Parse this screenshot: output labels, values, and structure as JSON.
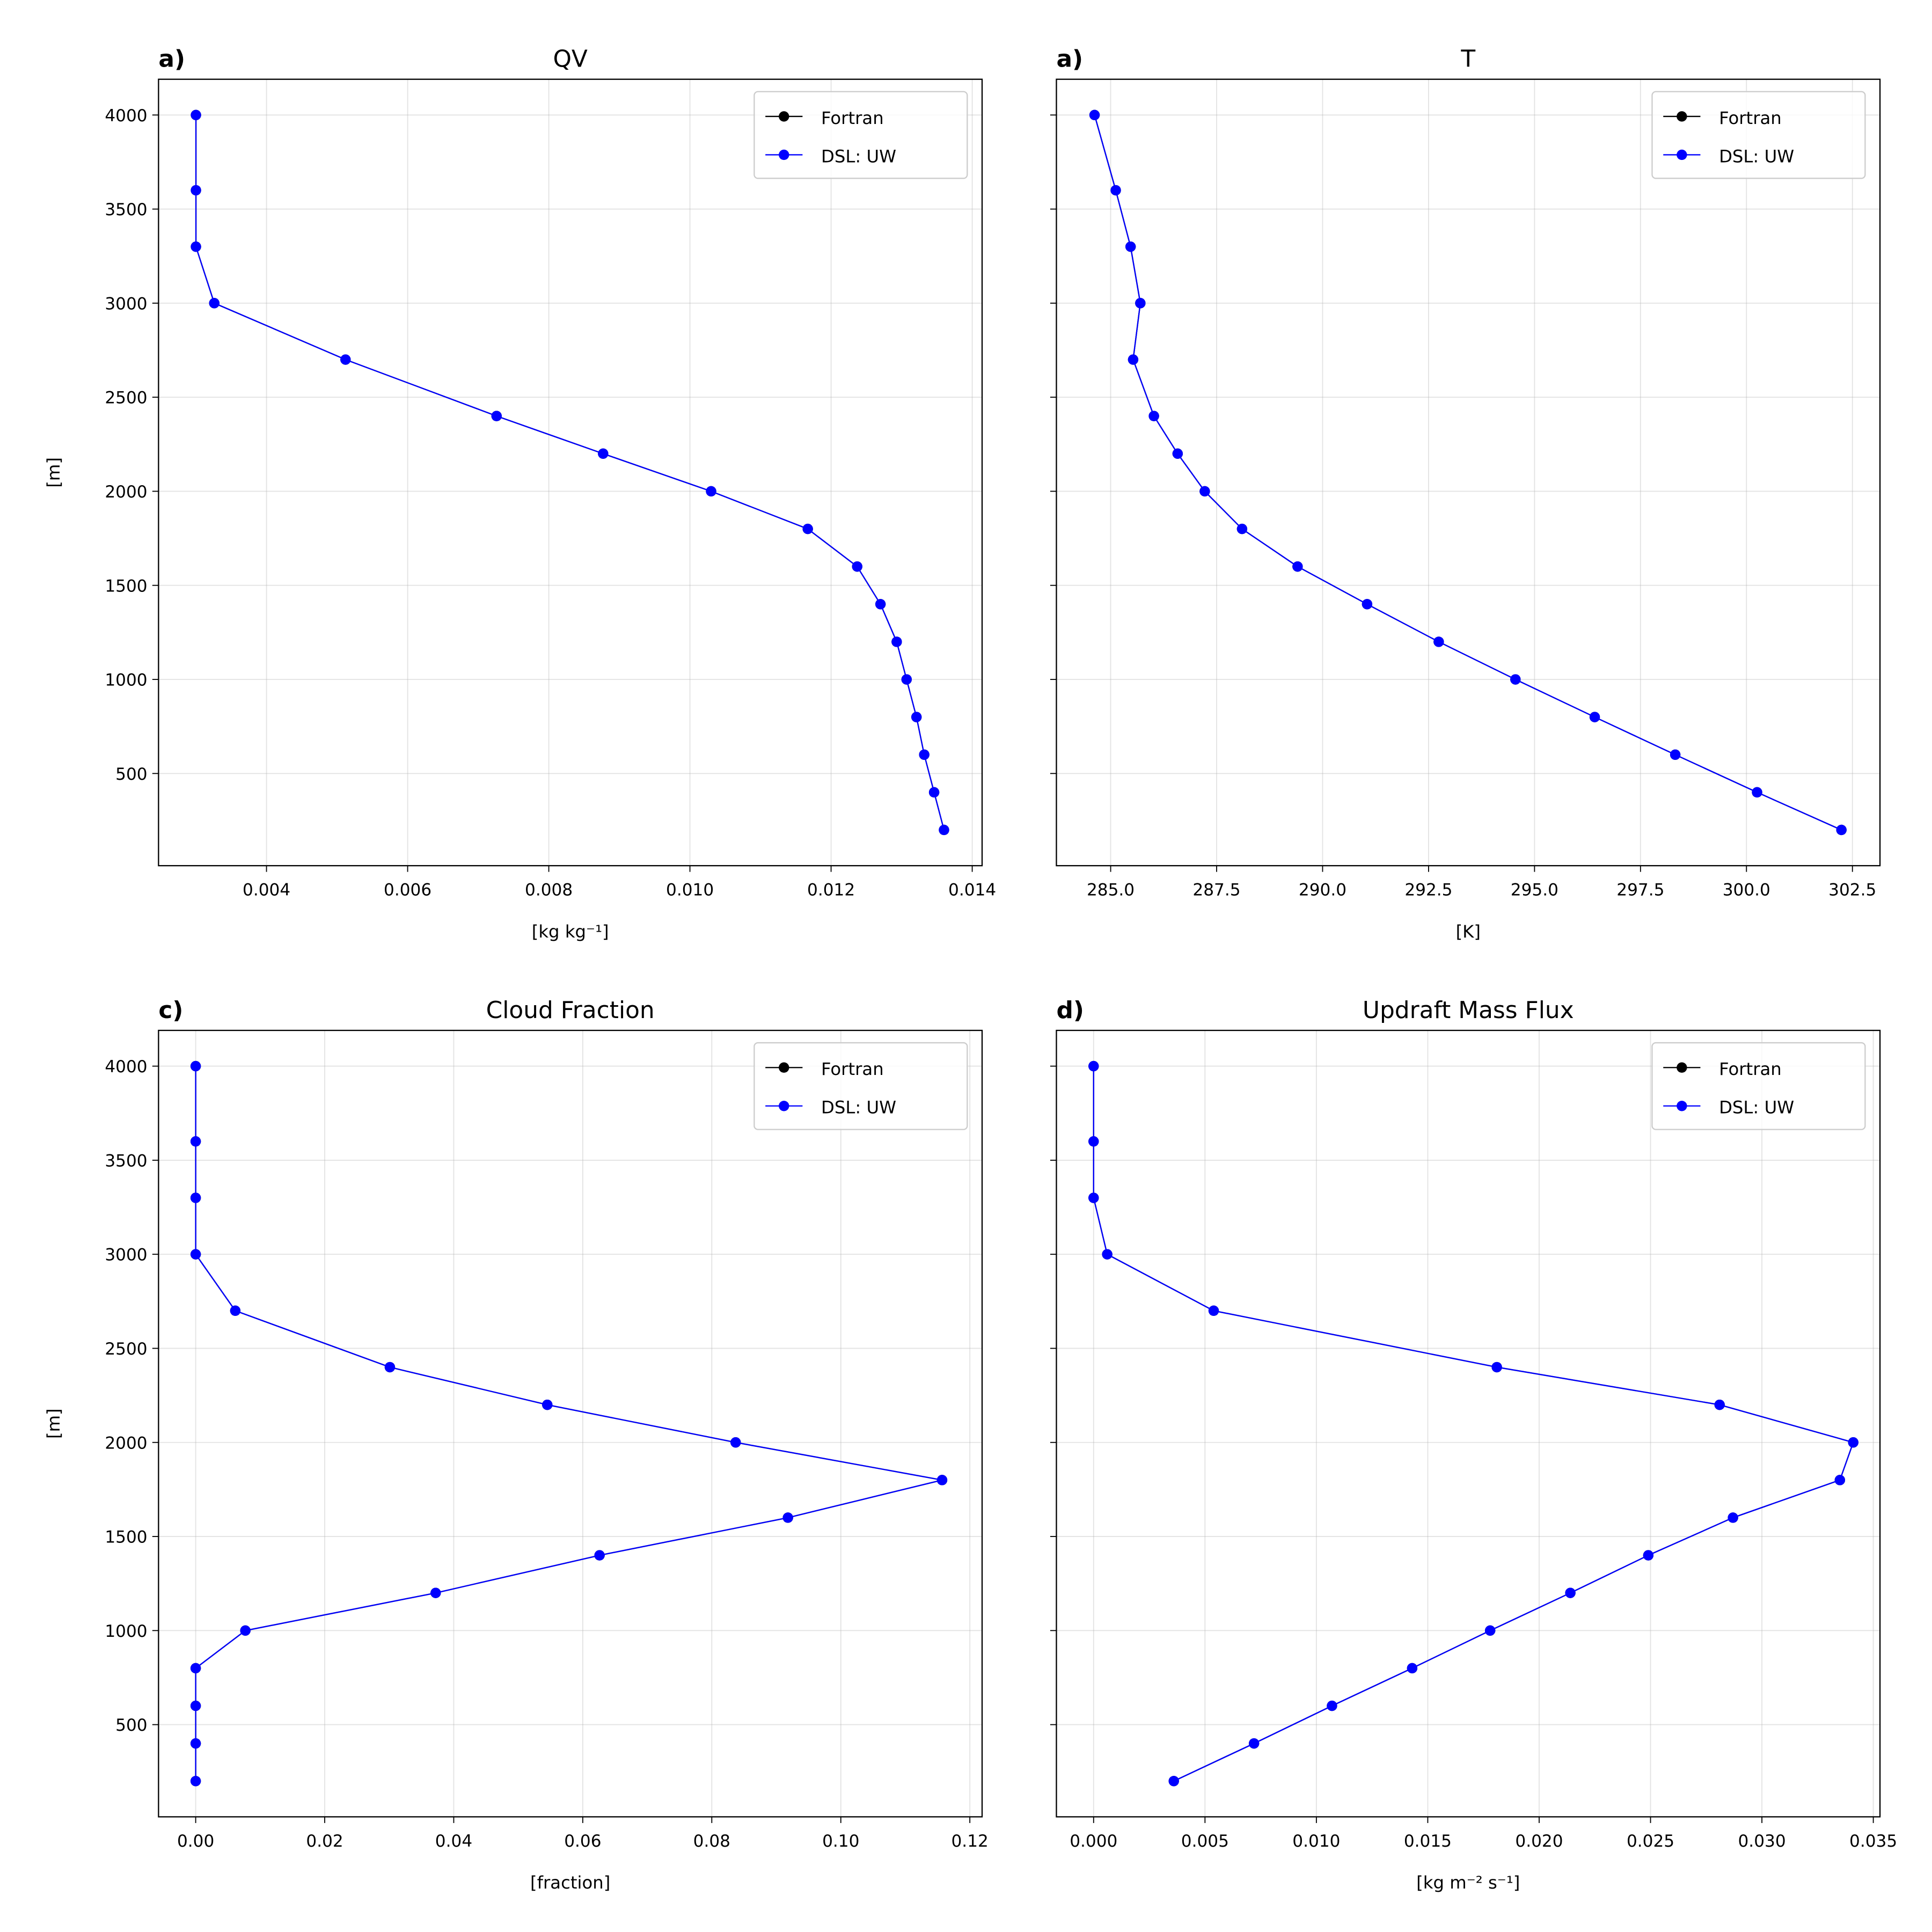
{
  "chart_data": [
    {
      "type": "line",
      "label": "a)",
      "title": "QV",
      "xlabel": "[kg kg⁻¹]",
      "ylabel": "[m]",
      "xlim": [
        0.00247,
        0.01414
      ],
      "ylim": [
        10,
        4190
      ],
      "xticks": [
        0.004,
        0.006,
        0.008,
        0.01,
        0.012,
        0.014
      ],
      "xtick_labels": [
        "0.004",
        "0.006",
        "0.008",
        "0.010",
        "0.012",
        "0.014"
      ],
      "yticks": [
        500,
        1000,
        1500,
        2000,
        2500,
        3000,
        3500,
        4000
      ],
      "ytick_labels": [
        "500",
        "1000",
        "1500",
        "2000",
        "2500",
        "3000",
        "3500",
        "4000"
      ],
      "show_ytick_labels": true,
      "grid": true,
      "legend": "top-right",
      "y": [
        4000,
        3600,
        3300,
        3000,
        2700,
        2400,
        2200,
        2000,
        1800,
        1600,
        1400,
        1200,
        1000,
        800,
        600,
        400,
        200
      ],
      "series": [
        {
          "name": "Fortran",
          "color": "#000000",
          "x": [
            0.003,
            0.003,
            0.003,
            0.00326,
            0.00512,
            0.00726,
            0.00877,
            0.0103,
            0.01167,
            0.01237,
            0.0127,
            0.01293,
            0.01307,
            0.01321,
            0.01332,
            0.01346,
            0.0136
          ]
        },
        {
          "name": "DSL: UW",
          "color": "#0000ff",
          "x": [
            0.003,
            0.003,
            0.003,
            0.00326,
            0.00512,
            0.00726,
            0.00877,
            0.0103,
            0.01167,
            0.01237,
            0.0127,
            0.01293,
            0.01307,
            0.01321,
            0.01332,
            0.01346,
            0.0136
          ]
        }
      ]
    },
    {
      "type": "line",
      "label": "a)",
      "title": "T",
      "xlabel": "[K]",
      "ylabel": "",
      "xlim": [
        283.72,
        303.15
      ],
      "ylim": [
        10,
        4190
      ],
      "xticks": [
        285,
        287.5,
        290,
        292.5,
        295,
        297.5,
        300,
        302.5
      ],
      "xtick_labels": [
        "285.0",
        "287.5",
        "290.0",
        "292.5",
        "295.0",
        "297.5",
        "300.0",
        "302.5"
      ],
      "yticks": [
        500,
        1000,
        1500,
        2000,
        2500,
        3000,
        3500,
        4000
      ],
      "ytick_labels": [],
      "show_ytick_labels": false,
      "grid": true,
      "legend": "top-right",
      "y": [
        4000,
        3600,
        3300,
        3000,
        2700,
        2400,
        2200,
        2000,
        1800,
        1600,
        1400,
        1200,
        1000,
        800,
        600,
        400,
        200
      ],
      "series": [
        {
          "name": "Fortran",
          "color": "#000000",
          "x": [
            284.62,
            285.12,
            285.47,
            285.7,
            285.53,
            286.02,
            286.58,
            287.22,
            288.1,
            289.41,
            291.05,
            292.74,
            294.55,
            296.42,
            298.32,
            300.25,
            302.24
          ]
        },
        {
          "name": "DSL: UW",
          "color": "#0000ff",
          "x": [
            284.62,
            285.12,
            285.47,
            285.7,
            285.53,
            286.02,
            286.58,
            287.22,
            288.1,
            289.41,
            291.05,
            292.74,
            294.55,
            296.42,
            298.32,
            300.25,
            302.24
          ]
        }
      ]
    },
    {
      "type": "line",
      "label": "c)",
      "title": "Cloud Fraction",
      "xlabel": "[fraction]",
      "ylabel": "[m]",
      "xlim": [
        -0.00576,
        0.1219
      ],
      "ylim": [
        10,
        4190
      ],
      "xticks": [
        0,
        0.02,
        0.04,
        0.06,
        0.08,
        0.1,
        0.12
      ],
      "xtick_labels": [
        "0.00",
        "0.02",
        "0.04",
        "0.06",
        "0.08",
        "0.10",
        "0.12"
      ],
      "yticks": [
        500,
        1000,
        1500,
        2000,
        2500,
        3000,
        3500,
        4000
      ],
      "ytick_labels": [
        "500",
        "1000",
        "1500",
        "2000",
        "2500",
        "3000",
        "3500",
        "4000"
      ],
      "show_ytick_labels": true,
      "grid": true,
      "legend": "top-right",
      "y": [
        4000,
        3600,
        3300,
        3000,
        2700,
        2400,
        2200,
        2000,
        1800,
        1600,
        1400,
        1200,
        1000,
        800,
        600,
        400,
        200
      ],
      "series": [
        {
          "name": "Fortran",
          "color": "#000000",
          "x": [
            0,
            0,
            0,
            0,
            0.00614,
            0.0301,
            0.0545,
            0.0837,
            0.1157,
            0.0918,
            0.0626,
            0.0372,
            0.0077,
            0,
            0,
            0,
            0
          ]
        },
        {
          "name": "DSL: UW",
          "color": "#0000ff",
          "x": [
            0,
            0,
            0,
            0,
            0.00614,
            0.0301,
            0.0545,
            0.0837,
            0.1157,
            0.0918,
            0.0626,
            0.0372,
            0.0077,
            0,
            0,
            0,
            0
          ]
        }
      ]
    },
    {
      "type": "line",
      "label": "d)",
      "title": "Updraft Mass Flux",
      "xlabel": "[kg m⁻² s⁻¹]",
      "ylabel": "",
      "xlim": [
        -0.00167,
        0.0353
      ],
      "ylim": [
        10,
        4190
      ],
      "xticks": [
        0,
        0.005,
        0.01,
        0.015,
        0.02,
        0.025,
        0.03,
        0.035
      ],
      "xtick_labels": [
        "0.000",
        "0.005",
        "0.010",
        "0.015",
        "0.020",
        "0.025",
        "0.030",
        "0.035"
      ],
      "yticks": [
        500,
        1000,
        1500,
        2000,
        2500,
        3000,
        3500,
        4000
      ],
      "ytick_labels": [],
      "show_ytick_labels": false,
      "grid": true,
      "legend": "top-right",
      "y": [
        4000,
        3600,
        3300,
        3000,
        2700,
        2400,
        2200,
        2000,
        1800,
        1600,
        1400,
        1200,
        1000,
        800,
        600,
        400,
        200
      ],
      "series": [
        {
          "name": "Fortran",
          "color": "#000000",
          "x": [
            0,
            0,
            0,
            0.00061,
            0.00539,
            0.0181,
            0.0281,
            0.0341,
            0.0335,
            0.0287,
            0.0249,
            0.0214,
            0.0178,
            0.0143,
            0.0107,
            0.0072,
            0.0036
          ]
        },
        {
          "name": "DSL: UW",
          "color": "#0000ff",
          "x": [
            0,
            0,
            0,
            0.00061,
            0.00539,
            0.0181,
            0.0281,
            0.0341,
            0.0335,
            0.0287,
            0.0249,
            0.0214,
            0.0178,
            0.0143,
            0.0107,
            0.0072,
            0.0036
          ]
        }
      ]
    }
  ]
}
